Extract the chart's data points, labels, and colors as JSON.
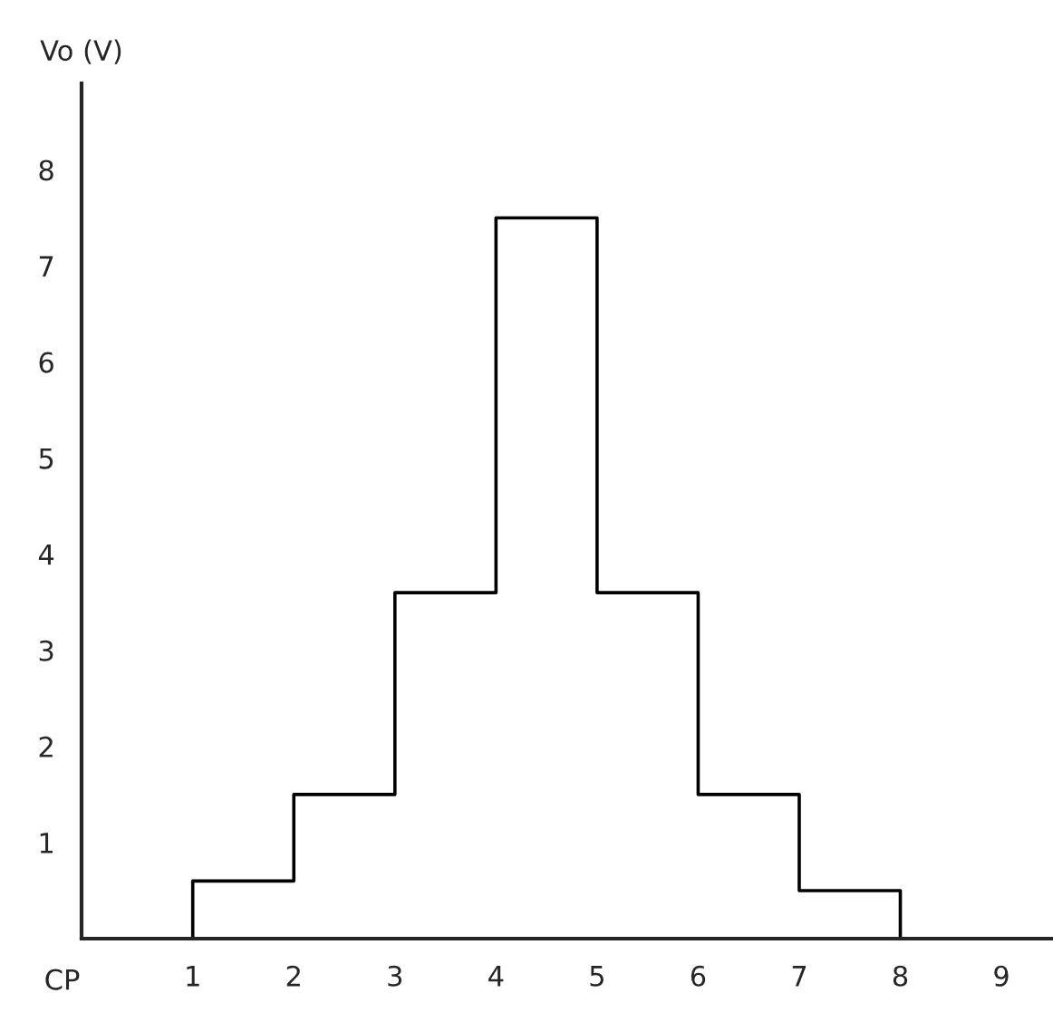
{
  "chart_data": {
    "type": "step",
    "xlabel": "CP",
    "ylabel": "Vo (V)",
    "x": [
      1,
      1,
      2,
      3,
      4,
      5,
      6,
      7,
      8
    ],
    "series": [
      {
        "color": "#000000",
        "values": [
          0,
          0.6,
          1.5,
          3.6,
          7.5,
          3.6,
          1.5,
          0.5,
          0
        ]
      }
    ],
    "xlim": [
      -0.1,
      9.5
    ],
    "ylim": [
      0,
      8.9
    ],
    "xticks": [
      1,
      2,
      3,
      4,
      5,
      6,
      7,
      8,
      9
    ],
    "yticks": [
      1,
      2,
      3,
      4,
      5,
      6,
      7,
      8
    ],
    "grid": false,
    "line_style": "solid"
  }
}
